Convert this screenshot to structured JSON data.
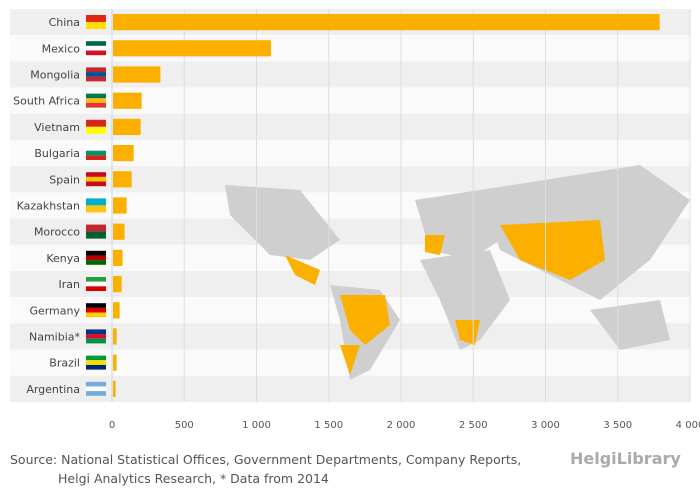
{
  "chart_data": {
    "type": "bar",
    "orientation": "horizontal",
    "categories": [
      "China",
      "Mexico",
      "Mongolia",
      "South Africa",
      "Vietnam",
      "Bulgaria",
      "Spain",
      "Kazakhstan",
      "Morocco",
      "Kenya",
      "Iran",
      "Germany",
      "Namibia*",
      "Brazil",
      "Argentina"
    ],
    "values": [
      3790,
      1100,
      335,
      205,
      198,
      150,
      136,
      101,
      87,
      73,
      67,
      53,
      32,
      32,
      25
    ],
    "xlim": [
      0,
      4000
    ],
    "xticks": [
      0,
      500,
      1000,
      1500,
      2000,
      2500,
      3000,
      3500,
      4000
    ],
    "xtick_labels": [
      "0",
      "500",
      "1 000",
      "1 500",
      "2 000",
      "2 500",
      "3 000",
      "3 500",
      "4 000"
    ],
    "bar_color": "#fbb000",
    "highlight_color": "#fbb000",
    "map_color": "#cfcfcf",
    "grid": true,
    "flag_colors": [
      [
        "#de2910",
        "#ffde00"
      ],
      [
        "#006847",
        "#ffffff",
        "#ce1126"
      ],
      [
        "#c4272f",
        "#015197",
        "#c4272f"
      ],
      [
        "#007a4d",
        "#ffb612",
        "#de3831"
      ],
      [
        "#da251d",
        "#ffff00"
      ],
      [
        "#ffffff",
        "#00966e",
        "#d62612"
      ],
      [
        "#c60b1e",
        "#ffc400",
        "#c60b1e"
      ],
      [
        "#00afca",
        "#fec50c"
      ],
      [
        "#c1272d",
        "#006233"
      ],
      [
        "#000000",
        "#bb0000",
        "#006600"
      ],
      [
        "#239f40",
        "#ffffff",
        "#da0000"
      ],
      [
        "#000000",
        "#dd0000",
        "#ffce00"
      ],
      [
        "#003580",
        "#d21034",
        "#009543"
      ],
      [
        "#009c3b",
        "#ffdf00",
        "#002776"
      ],
      [
        "#74acdf",
        "#ffffff",
        "#74acdf"
      ]
    ]
  },
  "footer": {
    "source_line1": "Source: National Statistical Offices, Government Departments, Company Reports,",
    "source_line2": "Helgi Analytics Research, * Data from 2014",
    "logo": "HelgiLibrary"
  }
}
